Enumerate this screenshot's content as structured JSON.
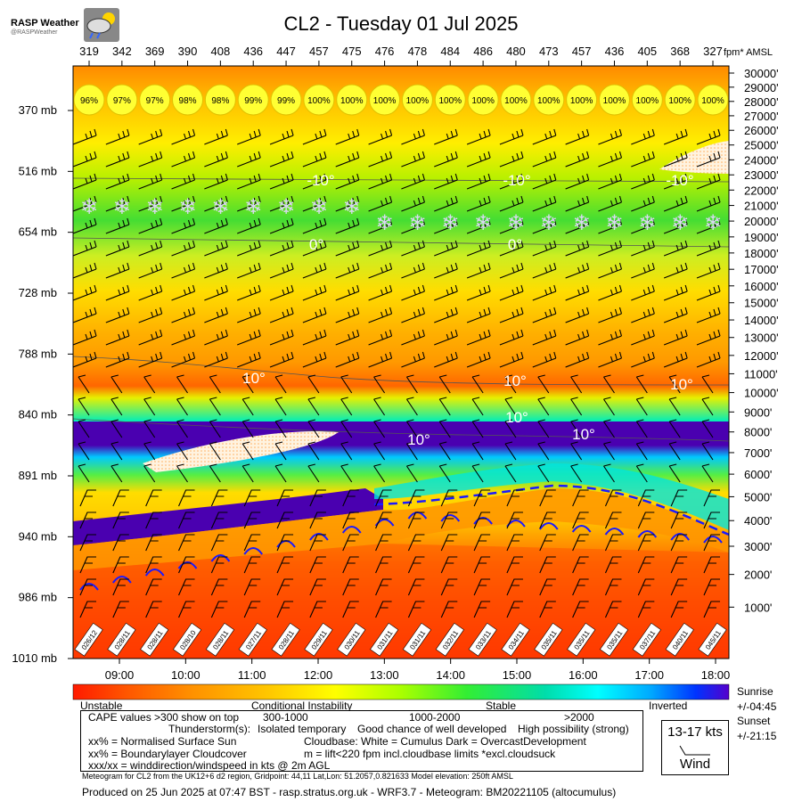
{
  "logo": {
    "title": "RASP Weather",
    "handle": "@RASPWeather"
  },
  "title": "CL2 - Tuesday 01 Jul 2025",
  "right_axis_unit": "fpm* AMSL",
  "colors": {
    "stable_blue": "#0000ff",
    "inverted_purple": "#4400aa",
    "cloudbase_dash": "#1a1aff",
    "arc": "#1a1aff"
  },
  "chart_data": {
    "type": "heatmap",
    "title": "CL2 - Tuesday 01 Jul 2025",
    "time_labels": [
      "09:00",
      "10:00",
      "11:00",
      "12:00",
      "13:00",
      "14:00",
      "15:00",
      "16:00",
      "17:00",
      "18:00"
    ],
    "top_values": [
      319,
      342,
      369,
      390,
      408,
      436,
      447,
      457,
      475,
      476,
      478,
      484,
      486,
      480,
      473,
      457,
      436,
      405,
      368,
      327
    ],
    "cloud_cover": [
      "96%",
      "97%",
      "97%",
      "98%",
      "98%",
      "99%",
      "99%",
      "100%",
      "100%",
      "100%",
      "100%",
      "100%",
      "100%",
      "100%",
      "100%",
      "100%",
      "100%",
      "100%",
      "100%",
      "100%"
    ],
    "pressure_levels": [
      "370 mb",
      "516 mb",
      "654 mb",
      "728 mb",
      "788 mb",
      "840 mb",
      "891 mb",
      "940 mb",
      "986 mb",
      "1010 mb"
    ],
    "altitude_labels": [
      "30000'",
      "29000'",
      "28000'",
      "27000'",
      "26000'",
      "25000'",
      "24000'",
      "23000'",
      "22000'",
      "21000'",
      "20000'",
      "19000'",
      "18000'",
      "17000'",
      "16000'",
      "15000'",
      "14000'",
      "13000'",
      "12000'",
      "11000'",
      "10000'",
      "9000'",
      "8000'",
      "7000'",
      "6000'",
      "5000'",
      "4000'",
      "3000'",
      "2000'",
      "1000'"
    ],
    "surface_wind": [
      "026/12",
      "028/11",
      "028/11",
      "028/10",
      "028/11",
      "027/11",
      "028/11",
      "029/11",
      "030/11",
      "031/11",
      "031/11",
      "032/11",
      "033/11",
      "034/11",
      "035/11",
      "035/11",
      "035/11",
      "037/11",
      "040/11",
      "045/11"
    ],
    "isotherm_labels": [
      {
        "label": "-10°",
        "time": "12:00"
      },
      {
        "label": "-10°",
        "time": "15:00"
      },
      {
        "label": "-10°",
        "time": "17:30"
      },
      {
        "label": "0°",
        "time": "12:00"
      },
      {
        "label": "0°",
        "time": "15:00"
      },
      {
        "label": "10°",
        "time": "11:00"
      },
      {
        "label": "10°",
        "time": "15:00"
      },
      {
        "label": "10°",
        "time": "17:30"
      },
      {
        "label": "10°",
        "time": "15:00"
      },
      {
        "label": "10°",
        "time": "13:30"
      },
      {
        "label": "10°",
        "time": "16:00"
      }
    ],
    "colorbar": {
      "stops": [
        "#ff1a00",
        "#ff5500",
        "#ff8800",
        "#ffaa00",
        "#ffd000",
        "#ffff00",
        "#c8ff00",
        "#80ff00",
        "#33ee33",
        "#00dd99",
        "#00ffff",
        "#00b0ff",
        "#0044ff",
        "#5500cc"
      ],
      "labels": [
        "Unstable",
        "Conditional Instability",
        "Stable",
        "Inverted"
      ]
    }
  },
  "legend": {
    "line1_a": "CAPE values >300 show on top",
    "line1_b": "300-1000",
    "line1_c": "1000-2000",
    "line1_d": ">2000",
    "line2_a": "Thunderstorm(s):",
    "line2_b": "Isolated temporary",
    "line2_c": "Good chance of well developed",
    "line2_d": "High possibility (strong)",
    "line3_a": "xx% = Normalised Surface Sun",
    "line3_b": "Cloudbase: White = Cumulus   Dark = OvercastDevelopment",
    "line4_a": "xx% = Boundarylayer Cloudcover",
    "line4_b": "m = lift<220 fpm incl.cloudbase limits *excl.cloudsuck",
    "line5_a": "xxx/xx = winddirection/windspeed in kts @ 2m AGL"
  },
  "wind_box": {
    "kts": "13-17 kts",
    "label": "Wind"
  },
  "sun": {
    "sunrise_label": "Sunrise",
    "sunrise_val": "+/-04:45",
    "sunset_label": "Sunset",
    "sunset_val": "+/-21:15"
  },
  "footer": {
    "small": "Meteogram for CL2 from the UK12+6 d2 region, Gridpoint: 44,11 Lat,Lon: 51.2057,0.821633 Model elevation: 250ft AMSL",
    "big": "Produced on 25 Jun 2025 at 07:47 BST - rasp.stratus.org.uk - WRF3.7 - Meteogram: BM20221105 (altocumulus)"
  }
}
